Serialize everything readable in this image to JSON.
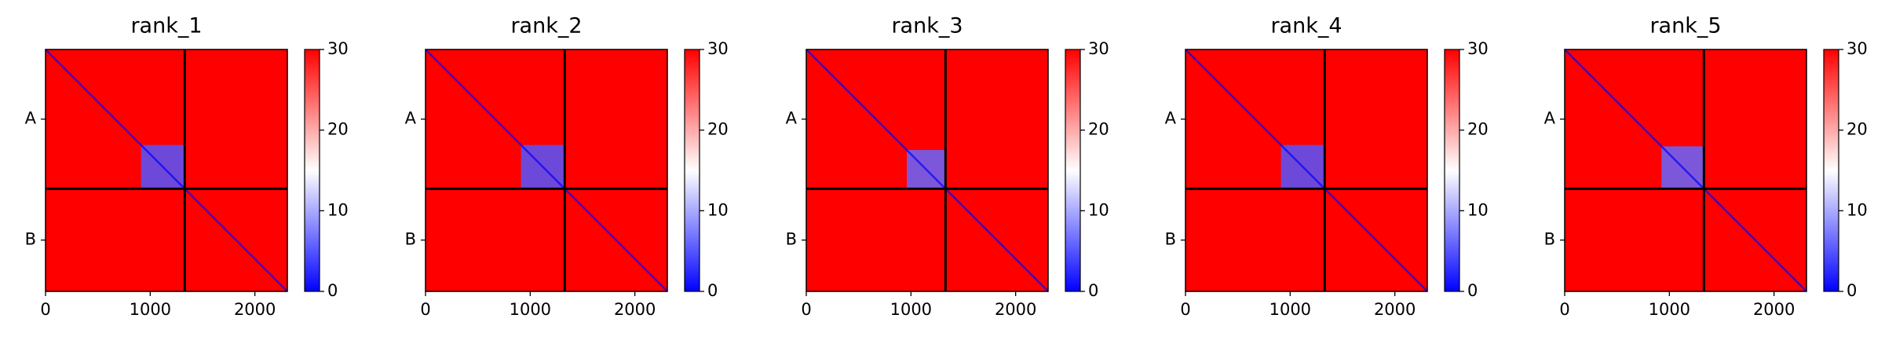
{
  "chart_data": [
    {
      "type": "heatmap",
      "title": "rank_1",
      "xlim": [
        0,
        2310
      ],
      "ylim": [
        2310,
        0
      ],
      "xticks": [
        0,
        1000,
        2000
      ],
      "yticks": [
        {
          "value": 665,
          "label": "A"
        },
        {
          "value": 1820,
          "label": "B"
        }
      ],
      "chain_breaks": [
        1330
      ],
      "colorbar": {
        "clim": [
          0,
          30
        ],
        "ticks": [
          0,
          10,
          20,
          30
        ],
        "colormap": "bwr"
      },
      "background": 30,
      "diagonal": 0,
      "blocks": [
        {
          "x": [
            912,
            1330
          ],
          "y": [
            912,
            1330
          ],
          "value": 5
        }
      ]
    },
    {
      "type": "heatmap",
      "title": "rank_2",
      "xlim": [
        0,
        2310
      ],
      "ylim": [
        2310,
        0
      ],
      "xticks": [
        0,
        1000,
        2000
      ],
      "yticks": [
        {
          "value": 665,
          "label": "A"
        },
        {
          "value": 1820,
          "label": "B"
        }
      ],
      "chain_breaks": [
        1330
      ],
      "colorbar": {
        "clim": [
          0,
          30
        ],
        "ticks": [
          0,
          10,
          20,
          30
        ],
        "colormap": "bwr"
      },
      "background": 30,
      "diagonal": 0,
      "blocks": [
        {
          "x": [
            912,
            1330
          ],
          "y": [
            912,
            1330
          ],
          "value": 5
        }
      ]
    },
    {
      "type": "heatmap",
      "title": "rank_3",
      "xlim": [
        0,
        2310
      ],
      "ylim": [
        2310,
        0
      ],
      "xticks": [
        0,
        1000,
        2000
      ],
      "yticks": [
        {
          "value": 665,
          "label": "A"
        },
        {
          "value": 1820,
          "label": "B"
        }
      ],
      "chain_breaks": [
        1330
      ],
      "colorbar": {
        "clim": [
          0,
          30
        ],
        "ticks": [
          0,
          10,
          20,
          30
        ],
        "colormap": "bwr"
      },
      "background": 30,
      "diagonal": 0,
      "blocks": [
        {
          "x": [
            960,
            1330
          ],
          "y": [
            960,
            1330
          ],
          "value": 6
        }
      ]
    },
    {
      "type": "heatmap",
      "title": "rank_4",
      "xlim": [
        0,
        2310
      ],
      "ylim": [
        2310,
        0
      ],
      "xticks": [
        0,
        1000,
        2000
      ],
      "yticks": [
        {
          "value": 665,
          "label": "A"
        },
        {
          "value": 1820,
          "label": "B"
        }
      ],
      "chain_breaks": [
        1330
      ],
      "colorbar": {
        "clim": [
          0,
          30
        ],
        "ticks": [
          0,
          10,
          20,
          30
        ],
        "colormap": "bwr"
      },
      "background": 30,
      "diagonal": 0,
      "blocks": [
        {
          "x": [
            912,
            1330
          ],
          "y": [
            912,
            1330
          ],
          "value": 5
        }
      ]
    },
    {
      "type": "heatmap",
      "title": "rank_5",
      "xlim": [
        0,
        2310
      ],
      "ylim": [
        2310,
        0
      ],
      "xticks": [
        0,
        1000,
        2000
      ],
      "yticks": [
        {
          "value": 665,
          "label": "A"
        },
        {
          "value": 1820,
          "label": "B"
        }
      ],
      "chain_breaks": [
        1330
      ],
      "colorbar": {
        "clim": [
          0,
          30
        ],
        "ticks": [
          0,
          10,
          20,
          30
        ],
        "colormap": "bwr"
      },
      "background": 30,
      "diagonal": 0,
      "blocks": [
        {
          "x": [
            925,
            1330
          ],
          "y": [
            925,
            1330
          ],
          "value": 6
        }
      ]
    }
  ]
}
